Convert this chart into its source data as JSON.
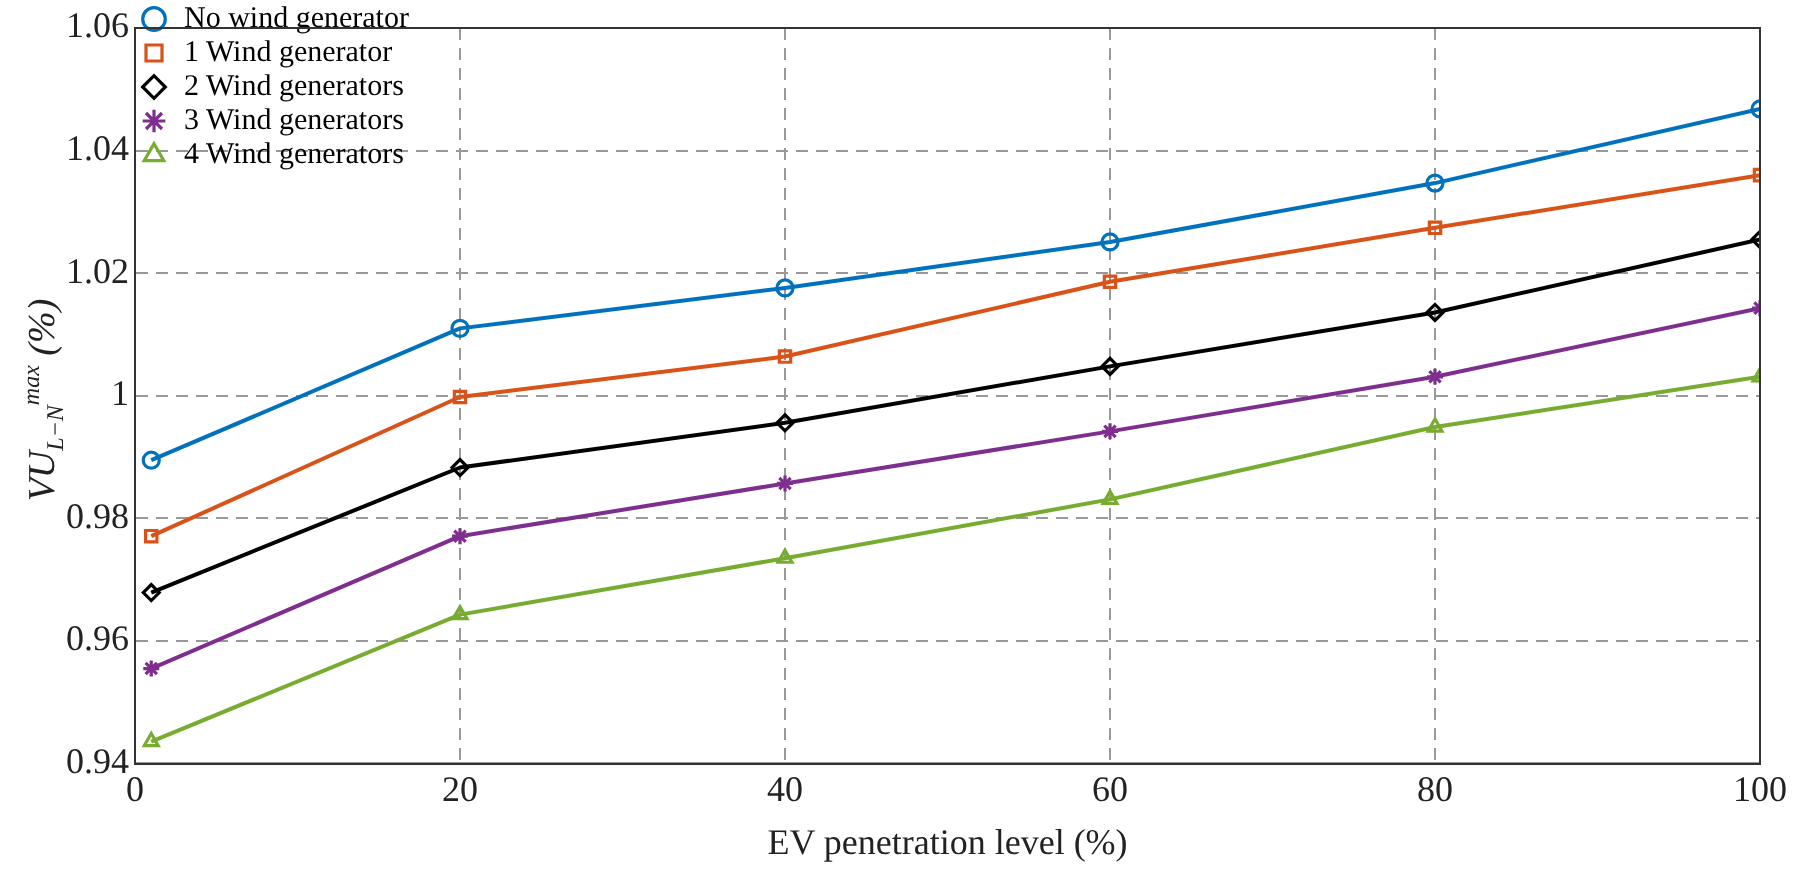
{
  "chart_data": {
    "type": "line",
    "xlabel": "EV penetration level (%)",
    "ylabel": "VU$_{L−N}$$^{max}$ (%)",
    "x": [
      1,
      20,
      40,
      60,
      80,
      100
    ],
    "series": [
      {
        "name": "No wind generator",
        "color": "#0072bd",
        "marker": "circle",
        "values": [
          0.9895,
          1.011,
          1.0176,
          1.0251,
          1.0347,
          1.0468
        ]
      },
      {
        "name": "1 Wind generator",
        "color": "#d95319",
        "marker": "square",
        "values": [
          0.9771,
          0.9998,
          1.0064,
          1.0186,
          1.0274,
          1.036
        ]
      },
      {
        "name": "2 Wind generators",
        "color": "#000000",
        "marker": "diamond",
        "values": [
          0.9679,
          0.9883,
          0.9956,
          1.0048,
          1.0136,
          1.0255
        ]
      },
      {
        "name": "3 Wind generators",
        "color": "#7e2f8e",
        "marker": "cross",
        "values": [
          0.9555,
          0.9771,
          0.9857,
          0.9942,
          1.0031,
          1.0143
        ]
      },
      {
        "name": "4 Wind generators",
        "color": "#77ac30",
        "marker": "triangle",
        "values": [
          0.9436,
          0.9643,
          0.9735,
          0.9831,
          0.9949,
          1.0031
        ]
      }
    ],
    "xlim": [
      0,
      100
    ],
    "xticks": [
      0,
      20,
      40,
      60,
      80,
      100
    ],
    "ylim": [
      0.94,
      1.06
    ],
    "yticks": [
      0.94,
      0.96,
      0.98,
      1,
      1.02,
      1.04,
      1.06
    ],
    "grid": true,
    "legend": "top left",
    "line_style": "solid"
  }
}
